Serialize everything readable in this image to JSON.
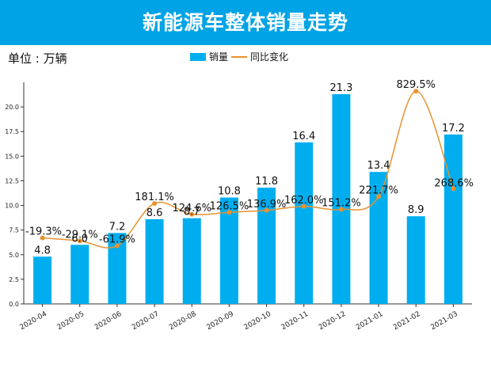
{
  "header": {
    "title": "新能源车整体销量走势"
  },
  "unit": {
    "label": "单位 : 万辆"
  },
  "colors": {
    "banner": "#00a3e6",
    "bar": "#00aeef",
    "line": "#e8922f",
    "axis": "#333333"
  },
  "chart_data": {
    "type": "bar",
    "title": "新能源车整体销量走势",
    "xlabel": "",
    "ylabel": "",
    "ylim": [
      0,
      22.5
    ],
    "yticks": [
      "0.0",
      "2.5",
      "5.0",
      "7.5",
      "10.0",
      "12.5",
      "15.0",
      "17.5",
      "20.0"
    ],
    "ytick_values": [
      0,
      2.5,
      5,
      7.5,
      10,
      12.5,
      15,
      17.5,
      20
    ],
    "categories": [
      "2020-04",
      "2020-05",
      "2020-06",
      "2020-07",
      "2020-08",
      "2020-09",
      "2020-10",
      "2020-11",
      "2020-12",
      "2021-01",
      "2021-02",
      "2021-03"
    ],
    "legend": {
      "position": "top-center",
      "items": [
        "销量",
        "同比变化"
      ]
    },
    "series": [
      {
        "name": "销量",
        "type": "bar",
        "values": [
          4.8,
          6.0,
          7.2,
          8.6,
          8.7,
          10.8,
          11.8,
          16.4,
          21.3,
          13.4,
          8.9,
          17.2
        ],
        "labels": [
          "4.8",
          "6.0",
          "7.2",
          "8.6",
          "8.7",
          "10.8",
          "11.8",
          "16.4",
          "21.3",
          "13.4",
          "8.9",
          "17.2"
        ]
      },
      {
        "name": "同比变化",
        "type": "line",
        "smooth": true,
        "values_on_left_axis": [
          6.7,
          6.4,
          5.9,
          10.2,
          9.1,
          9.3,
          9.5,
          9.9,
          9.6,
          10.9,
          21.6,
          11.7
        ],
        "labels": [
          "-19.3%",
          "-29.1%",
          "-61.9%",
          "181.1%",
          "124.6%",
          "126.5%",
          "136.9%",
          "162.0%",
          "151.2%",
          "221.7%",
          "829.5%",
          "268.6%"
        ]
      }
    ]
  }
}
